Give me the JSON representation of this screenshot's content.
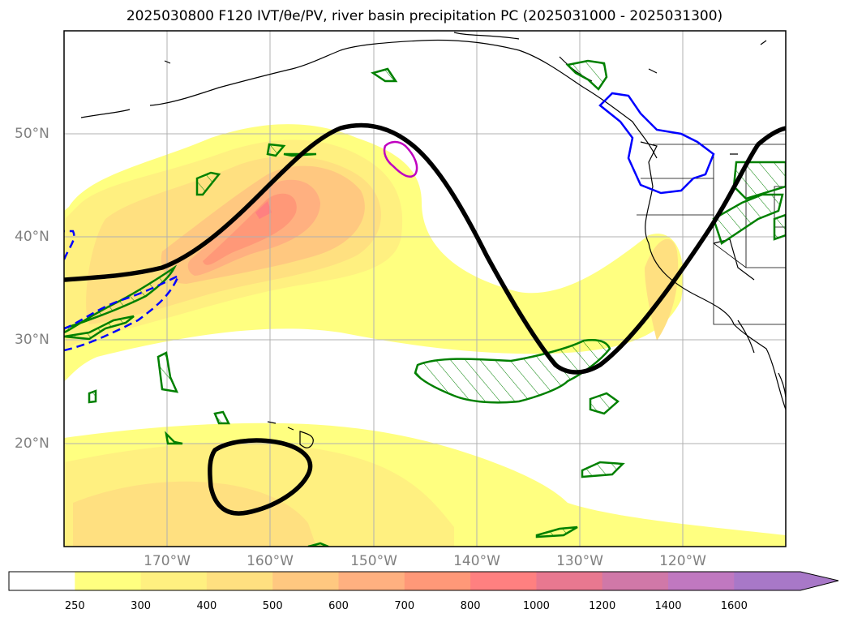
{
  "title": "2025030800 F120 IVT/θe/PV, river basin precipitation PC (2025031000 - 2025031300)",
  "lat_labels": [
    "50°N",
    "40°N",
    "30°N",
    "20°N"
  ],
  "lon_labels": [
    "170°W",
    "160°W",
    "150°W",
    "140°W",
    "130°W",
    "120°W"
  ],
  "colorbar": {
    "extend": "max",
    "labels": [
      "250",
      "300",
      "400",
      "500",
      "600",
      "700",
      "800",
      "1000",
      "1200",
      "1400",
      "1600"
    ],
    "colors": [
      "#ffffff",
      "#ffff80",
      "#fff080",
      "#ffe080",
      "#ffc880",
      "#ffb080",
      "#ff9878",
      "#ff8080",
      "#e87890",
      "#d078a8",
      "#c078c0",
      "#a878c8"
    ]
  },
  "colors": {
    "contour_black": "#000000",
    "hatch_green": "#008000",
    "contour_blue": "#0000ff",
    "contour_magenta": "#c000c0",
    "grid": "#b0b0b0",
    "label_gray": "#808080"
  }
}
